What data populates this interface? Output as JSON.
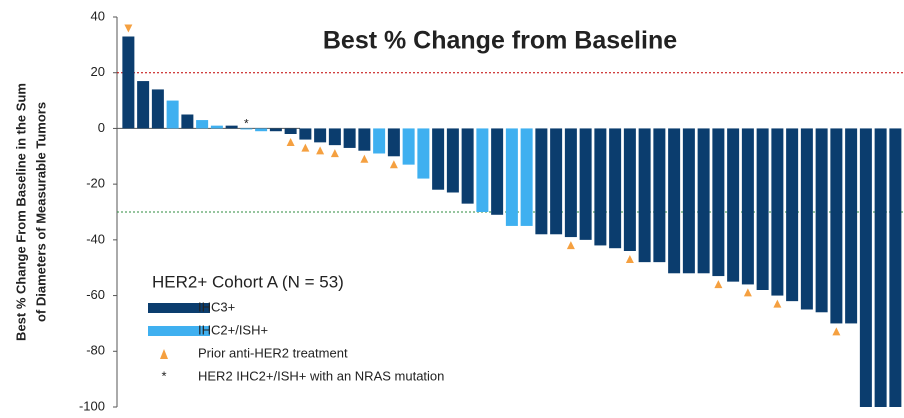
{
  "chart_data": {
    "type": "waterfall",
    "title": "Best % Change from Baseline",
    "y_label_lines": [
      "Best % Change From Baseline in the  Sum",
      "of Diameters of Measurable Tumors"
    ],
    "legend_title": "HER2+ Cohort A (N = 53)",
    "ylim": [
      -100,
      40
    ],
    "yticks": [
      40,
      20,
      0,
      -20,
      -40,
      -60,
      -80,
      -100
    ],
    "series": [
      {
        "name": "IHC3+",
        "color": "#0b3d6e",
        "values": [
          33,
          17,
          14,
          null,
          5,
          null,
          null,
          1,
          null,
          null,
          -1,
          -2,
          -4,
          -5,
          -6,
          -7,
          -8,
          null,
          -10,
          null,
          null,
          -22,
          -23,
          -27,
          null,
          -31,
          null,
          null,
          -38,
          -38,
          -39,
          -40,
          -42,
          -43,
          -44,
          -48,
          -48,
          -52,
          -52,
          -52,
          -53,
          -55,
          -56,
          -58,
          -60,
          -62,
          -65,
          -66,
          -70,
          -70,
          -100,
          -100,
          -100
        ]
      },
      {
        "name": "IHC2+/ISH+",
        "color": "#3fb0f0",
        "values": [
          null,
          null,
          null,
          10,
          null,
          3,
          1,
          null,
          0,
          -1,
          null,
          null,
          null,
          null,
          null,
          null,
          null,
          -9,
          null,
          -13,
          -18,
          null,
          null,
          null,
          -30,
          null,
          -35,
          -35,
          null,
          null,
          null,
          null,
          null,
          null,
          null,
          null,
          null,
          null,
          null,
          null,
          null,
          null,
          null,
          null,
          null,
          null,
          null,
          null,
          null,
          null,
          null,
          null,
          null
        ]
      }
    ],
    "markers": [
      {
        "name": "Prior anti-HER2 treatment",
        "symbol": "triangle",
        "color": "#f5a040",
        "bars": [
          0,
          11,
          12,
          13,
          14,
          16,
          18,
          30,
          34,
          40,
          42,
          44,
          48
        ]
      },
      {
        "name": "HER2 IHC2+/ISH+ with an NRAS mutation",
        "symbol": "*",
        "color": "#333333",
        "bars": [
          8
        ]
      }
    ],
    "reference_lines": [
      {
        "value": 20,
        "color": "#c00000"
      },
      {
        "value": -30,
        "color": "#2e8b3e"
      }
    ]
  }
}
